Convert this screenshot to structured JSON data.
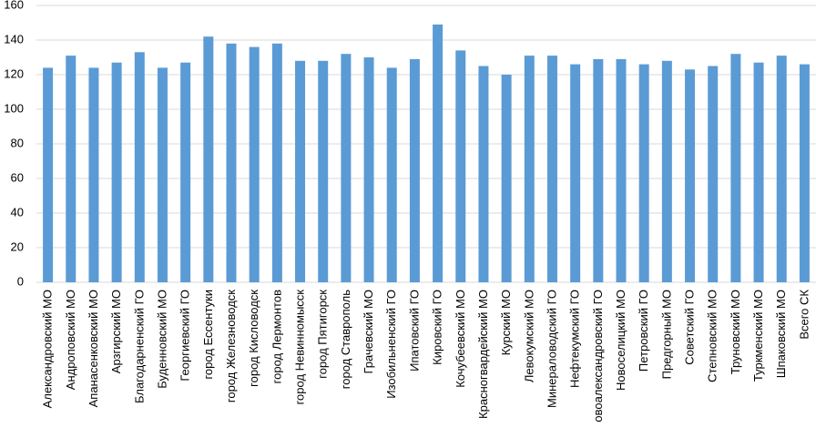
{
  "chart_data": {
    "type": "bar",
    "categories": [
      "Александровский МО",
      "Андроповский МО",
      "Апанасенковский МО",
      "Арзгирский МО",
      "Благодарненский ГО",
      "Буденновский МО",
      "Георгиевский ГО",
      "город Ессентуки",
      "город Железноводск",
      "город Кисловодск",
      "город Лермонтов",
      "город Невинномысск",
      "город Пятигорск",
      "город Ставрополь",
      "Грачевский МО",
      "Изобильненский ГО",
      "Ипатовский ГО",
      "Кировский ГО",
      "Кочубеевский МО",
      "Красногвардейский МО",
      "Курский МО",
      "Левокумский МО",
      "Минераловодский ГО",
      "Нефтекумский ГО",
      "овоалександровский ГО",
      "Новоселицкий МО",
      "Петровский ГО",
      "Предгорный МО",
      "Советский ГО",
      "Степновский МО",
      "Труновский МО",
      "Туркменский МО",
      "Шпаковский МО",
      "Всего СК"
    ],
    "values": [
      124,
      131,
      124,
      127,
      133,
      124,
      127,
      142,
      138,
      136,
      138,
      128,
      128,
      132,
      130,
      124,
      129,
      149,
      134,
      125,
      120,
      131,
      131,
      126,
      129,
      129,
      126,
      128,
      123,
      125,
      132,
      127,
      131,
      126
    ],
    "color": "#5b9bd5",
    "ylim": [
      0,
      160
    ],
    "yticks": [
      0,
      20,
      40,
      60,
      80,
      100,
      120,
      140,
      160
    ],
    "grid": true
  }
}
